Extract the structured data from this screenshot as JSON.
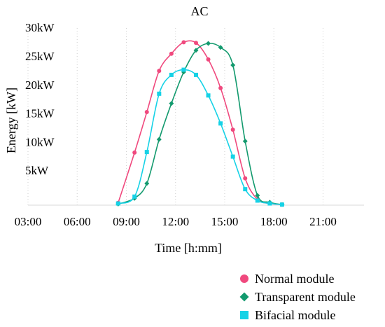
{
  "chart_data": {
    "type": "line",
    "title": "AC",
    "xlabel": "Time [h:mm]",
    "ylabel": "Energy [kW]",
    "xlim": [
      3,
      23.5
    ],
    "ylim": [
      0,
      31
    ],
    "x_ticks": [
      {
        "value": 3,
        "label": "03:00"
      },
      {
        "value": 6,
        "label": "06:00"
      },
      {
        "value": 9,
        "label": "09:00"
      },
      {
        "value": 12,
        "label": "12:00"
      },
      {
        "value": 15,
        "label": "15:00"
      },
      {
        "value": 18,
        "label": "18:00"
      },
      {
        "value": 21,
        "label": "21:00"
      }
    ],
    "y_ticks": [
      {
        "value": 5,
        "label": "5kW"
      },
      {
        "value": 10,
        "label": "10kW"
      },
      {
        "value": 15,
        "label": "15kW"
      },
      {
        "value": 20,
        "label": "20kW"
      },
      {
        "value": 25,
        "label": "25kW"
      },
      {
        "value": 30,
        "label": "30kW"
      }
    ],
    "grid": "vertical-dotted",
    "legend_position": "bottom-right",
    "series": [
      {
        "name": "Normal module",
        "color": "#f0497e",
        "marker": "circle",
        "x": [
          8.5,
          9.5,
          10.25,
          11,
          11.75,
          12.5,
          13.25,
          14,
          14.75,
          15.5,
          16.25,
          17,
          17.75,
          18.5
        ],
        "y": [
          0.4,
          9.2,
          16.3,
          23.5,
          26.5,
          28.5,
          28.4,
          25.5,
          20.5,
          13.2,
          4.7,
          1.0,
          0.3,
          0.1
        ]
      },
      {
        "name": "Transparent module",
        "color": "#139a6e",
        "marker": "diamond",
        "x": [
          8.5,
          9.5,
          10.25,
          11,
          11.75,
          12.5,
          13.25,
          14,
          14.75,
          15.5,
          16.25,
          17,
          17.75,
          18.5
        ],
        "y": [
          0.2,
          1.2,
          3.8,
          11.5,
          17.8,
          23.3,
          27.1,
          28.3,
          27.6,
          24.5,
          11.2,
          1.7,
          0.5,
          0.1
        ]
      },
      {
        "name": "Bifacial module",
        "color": "#16d2e6",
        "marker": "square",
        "x": [
          8.5,
          9.5,
          10.25,
          11,
          11.75,
          12.5,
          13.25,
          14,
          14.75,
          15.5,
          16.25,
          17,
          17.75,
          18.5
        ],
        "y": [
          0.3,
          1.5,
          9.3,
          19.5,
          22.8,
          23.7,
          22.8,
          19.2,
          14.3,
          8.5,
          2.8,
          0.8,
          0.3,
          0.1
        ]
      }
    ]
  }
}
